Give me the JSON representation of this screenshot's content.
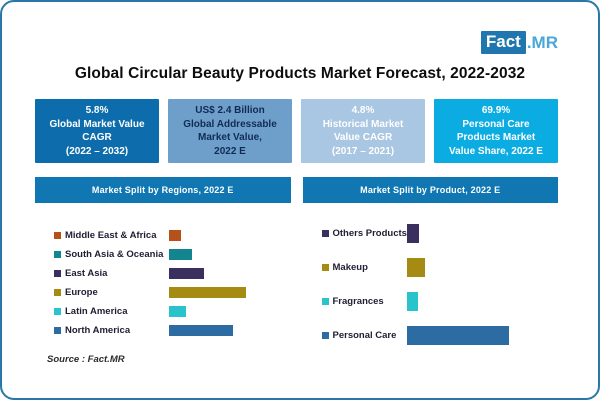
{
  "logo": {
    "fact": "Fact",
    "mr": ".MR",
    "fact_bg": "#2076af",
    "fact_fg": "#ffffff",
    "mr_color": "#48a8d8"
  },
  "title": "Global Circular Beauty Products Market Forecast, 2022-2032",
  "colors": {
    "frame_border": "#2878a8",
    "header_bar": "#1177b2"
  },
  "stat_boxes": [
    {
      "lines": [
        "5.8%",
        "Global Market Value",
        "CAGR",
        "(2022 – 2032)"
      ],
      "bg": "#0d6dac",
      "fg": "#ffffff"
    },
    {
      "lines": [
        "US$ 2.4 Billion",
        "Global Addressable",
        "Market Value,",
        "2022 E"
      ],
      "bg": "#6e9fcb",
      "fg": "#112c54"
    },
    {
      "lines": [
        "4.8%",
        "Historical Market",
        "Value CAGR",
        "(2017 – 2021)"
      ],
      "bg": "#a9c6e2",
      "fg": "#ffffff"
    },
    {
      "lines": [
        "69.9%",
        "Personal Care",
        "Products Market",
        "Value Share, 2022 E"
      ],
      "bg": "#0bace2",
      "fg": "#ffffff"
    }
  ],
  "chart_data": [
    {
      "type": "bar",
      "orientation": "horizontal",
      "title": "Market Split by Regions, 2022 E",
      "categories": [
        "Middle East & Africa",
        "South Asia & Oceania",
        "East Asia",
        "Europe",
        "Latin America",
        "North America"
      ],
      "values": [
        5.3,
        10.1,
        15.4,
        33.8,
        7.5,
        28.1
      ],
      "unit": "% of market value (estimated from bar lengths; axis not shown)",
      "colors": [
        "#b55119",
        "#12858f",
        "#3a2f5f",
        "#a68b13",
        "#29c3cb",
        "#2d6ba3"
      ],
      "legend_position": "left",
      "grid": false,
      "axes_hidden": true
    },
    {
      "type": "bar",
      "orientation": "horizontal",
      "title": "Market Split by Product, 2022 E",
      "categories": [
        "Others Products",
        "Makeup",
        "Fragrances",
        "Personal Care"
      ],
      "values": [
        8.9,
        13.0,
        8.2,
        69.9
      ],
      "unit": "% of market value (Personal Care = 69.9% labeled; others estimated)",
      "colors": [
        "#3a2f5f",
        "#a68b13",
        "#29c3cb",
        "#2d6ba3"
      ],
      "legend_position": "left",
      "grid": false,
      "axes_hidden": true
    }
  ],
  "source": "Source : Fact.MR"
}
